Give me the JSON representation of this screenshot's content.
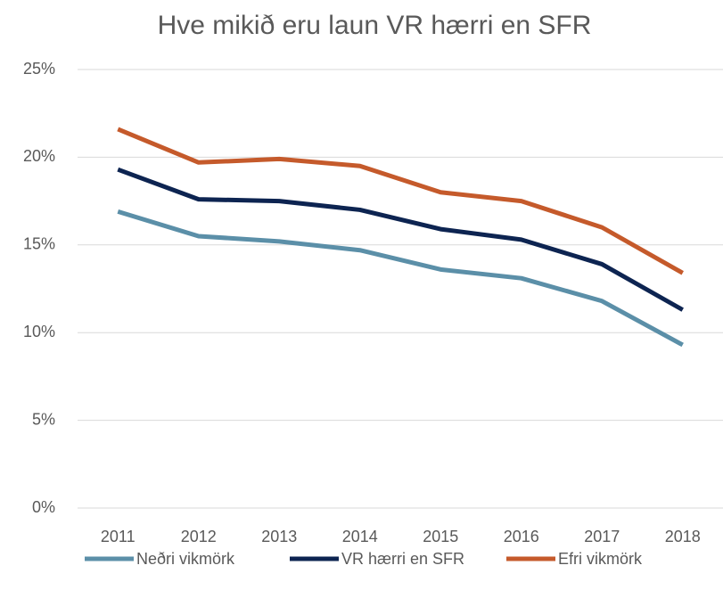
{
  "chart_data": {
    "type": "line",
    "title": "Hve mikið eru laun VR hærri en SFR",
    "categories": [
      "2011",
      "2012",
      "2013",
      "2014",
      "2015",
      "2016",
      "2017",
      "2018"
    ],
    "series": [
      {
        "name": "Neðri vikmörk",
        "color": "#5b8fa8",
        "values": [
          16.9,
          15.5,
          15.2,
          14.7,
          13.6,
          13.1,
          11.8,
          9.3
        ]
      },
      {
        "name": "VR hærri en SFR",
        "color": "#0d2451",
        "values": [
          19.3,
          17.6,
          17.5,
          17.0,
          15.9,
          15.3,
          13.9,
          11.3
        ]
      },
      {
        "name": "Efri vikmörk",
        "color": "#c55a2b",
        "values": [
          21.6,
          19.7,
          19.9,
          19.5,
          18.0,
          17.5,
          16.0,
          13.4
        ]
      }
    ],
    "ylim": [
      0,
      25
    ],
    "yticks": [
      {
        "value": 0,
        "label": "0%"
      },
      {
        "value": 5,
        "label": "5%"
      },
      {
        "value": 10,
        "label": "10%"
      },
      {
        "value": 15,
        "label": "15%"
      },
      {
        "value": 20,
        "label": "20%"
      },
      {
        "value": 25,
        "label": "25%"
      }
    ],
    "grid": true,
    "legend": "bottom"
  }
}
